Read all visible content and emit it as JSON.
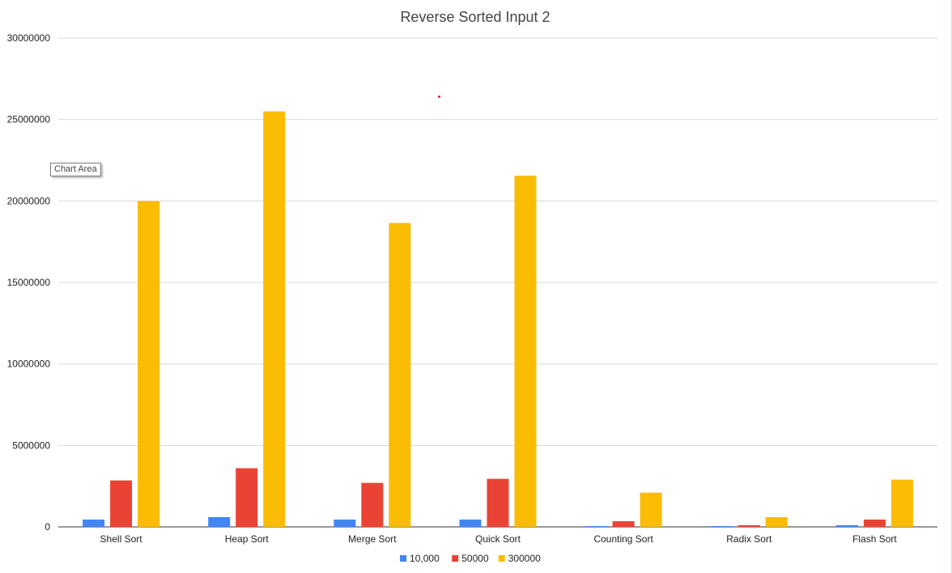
{
  "chart_data": {
    "type": "bar",
    "title": "Reverse Sorted Input 2",
    "categories": [
      "Shell Sort",
      "Heap Sort",
      "Merge Sort",
      "Quick Sort",
      "Counting Sort",
      "Radix Sort",
      "Flash Sort"
    ],
    "series": [
      {
        "name": "10,000",
        "color": "#4285f4",
        "values": [
          450000,
          600000,
          450000,
          450000,
          50000,
          50000,
          100000
        ]
      },
      {
        "name": "50000",
        "color": "#ea4335",
        "values": [
          2850000,
          3600000,
          2700000,
          2950000,
          350000,
          100000,
          450000
        ]
      },
      {
        "name": "300000",
        "color": "#fbbc04",
        "values": [
          20000000,
          25500000,
          18650000,
          21550000,
          2100000,
          600000,
          2900000
        ]
      }
    ],
    "ylim": [
      0,
      30000000
    ],
    "yticks": [
      "0",
      "5000000",
      "10000000",
      "15000000",
      "20000000",
      "25000000",
      "30000000"
    ],
    "grid": true,
    "legend": "bottom-center",
    "xlabel": "",
    "ylabel": ""
  },
  "tooltip": {
    "label": "Chart Area"
  }
}
